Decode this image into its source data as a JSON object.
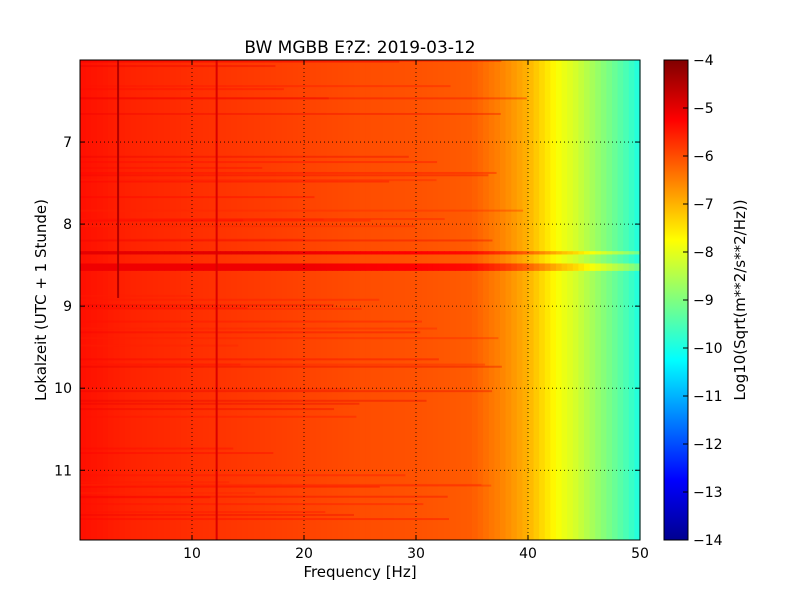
{
  "chart_data": {
    "type": "heatmap",
    "title": "BW MGBB E?Z: 2019-03-12",
    "xlabel": "Frequency [Hz]",
    "ylabel": "Lokalzeit (UTC + 1 Stunde)",
    "xlim": [
      0,
      50
    ],
    "ylim": [
      11.85,
      6.0
    ],
    "y_inverted": true,
    "x_ticks": [
      10,
      20,
      30,
      40,
      50
    ],
    "x_tick_labels": [
      "10",
      "20",
      "30",
      "40",
      "50"
    ],
    "y_ticks": [
      7,
      8,
      9,
      10,
      11
    ],
    "y_tick_labels": [
      "7",
      "8",
      "9",
      "10",
      "11"
    ],
    "grid": true,
    "colormap": "jet",
    "colorbar": {
      "label": "Log10(Sqrt(m**2/s**2/Hz))",
      "range": [
        -14,
        -4
      ],
      "ticks": [
        -4,
        -5,
        -6,
        -7,
        -8,
        -9,
        -10,
        -11,
        -12,
        -13,
        -14
      ],
      "tick_labels": [
        "−4",
        "−5",
        "−6",
        "−7",
        "−8",
        "−9",
        "−10",
        "−11",
        "−12",
        "−13",
        "−14"
      ]
    },
    "frequency_profile": {
      "freq_hz": [
        0,
        5,
        10,
        15,
        20,
        25,
        30,
        35,
        36,
        38,
        40,
        41,
        42,
        43,
        44,
        45,
        46,
        47,
        48,
        49,
        50
      ],
      "level": [
        -5.4,
        -5.6,
        -5.7,
        -5.8,
        -5.9,
        -6.0,
        -6.05,
        -6.15,
        -6.3,
        -6.6,
        -7.0,
        -7.3,
        -7.6,
        -7.9,
        -8.1,
        -8.4,
        -8.7,
        -9.0,
        -9.3,
        -9.6,
        -10.0
      ]
    },
    "bands": [
      {
        "time_from": 8.33,
        "time_to": 8.37,
        "level": -4.9
      },
      {
        "time_from": 8.48,
        "time_to": 8.57,
        "level": -5.0
      }
    ],
    "vertical_lines": [
      {
        "freq_hz": 3.4,
        "time_from": 6.0,
        "time_to": 8.9,
        "level": -4.5
      },
      {
        "freq_hz": 12.2,
        "time_from": 6.0,
        "time_to": 11.85,
        "level": -4.9
      }
    ]
  }
}
